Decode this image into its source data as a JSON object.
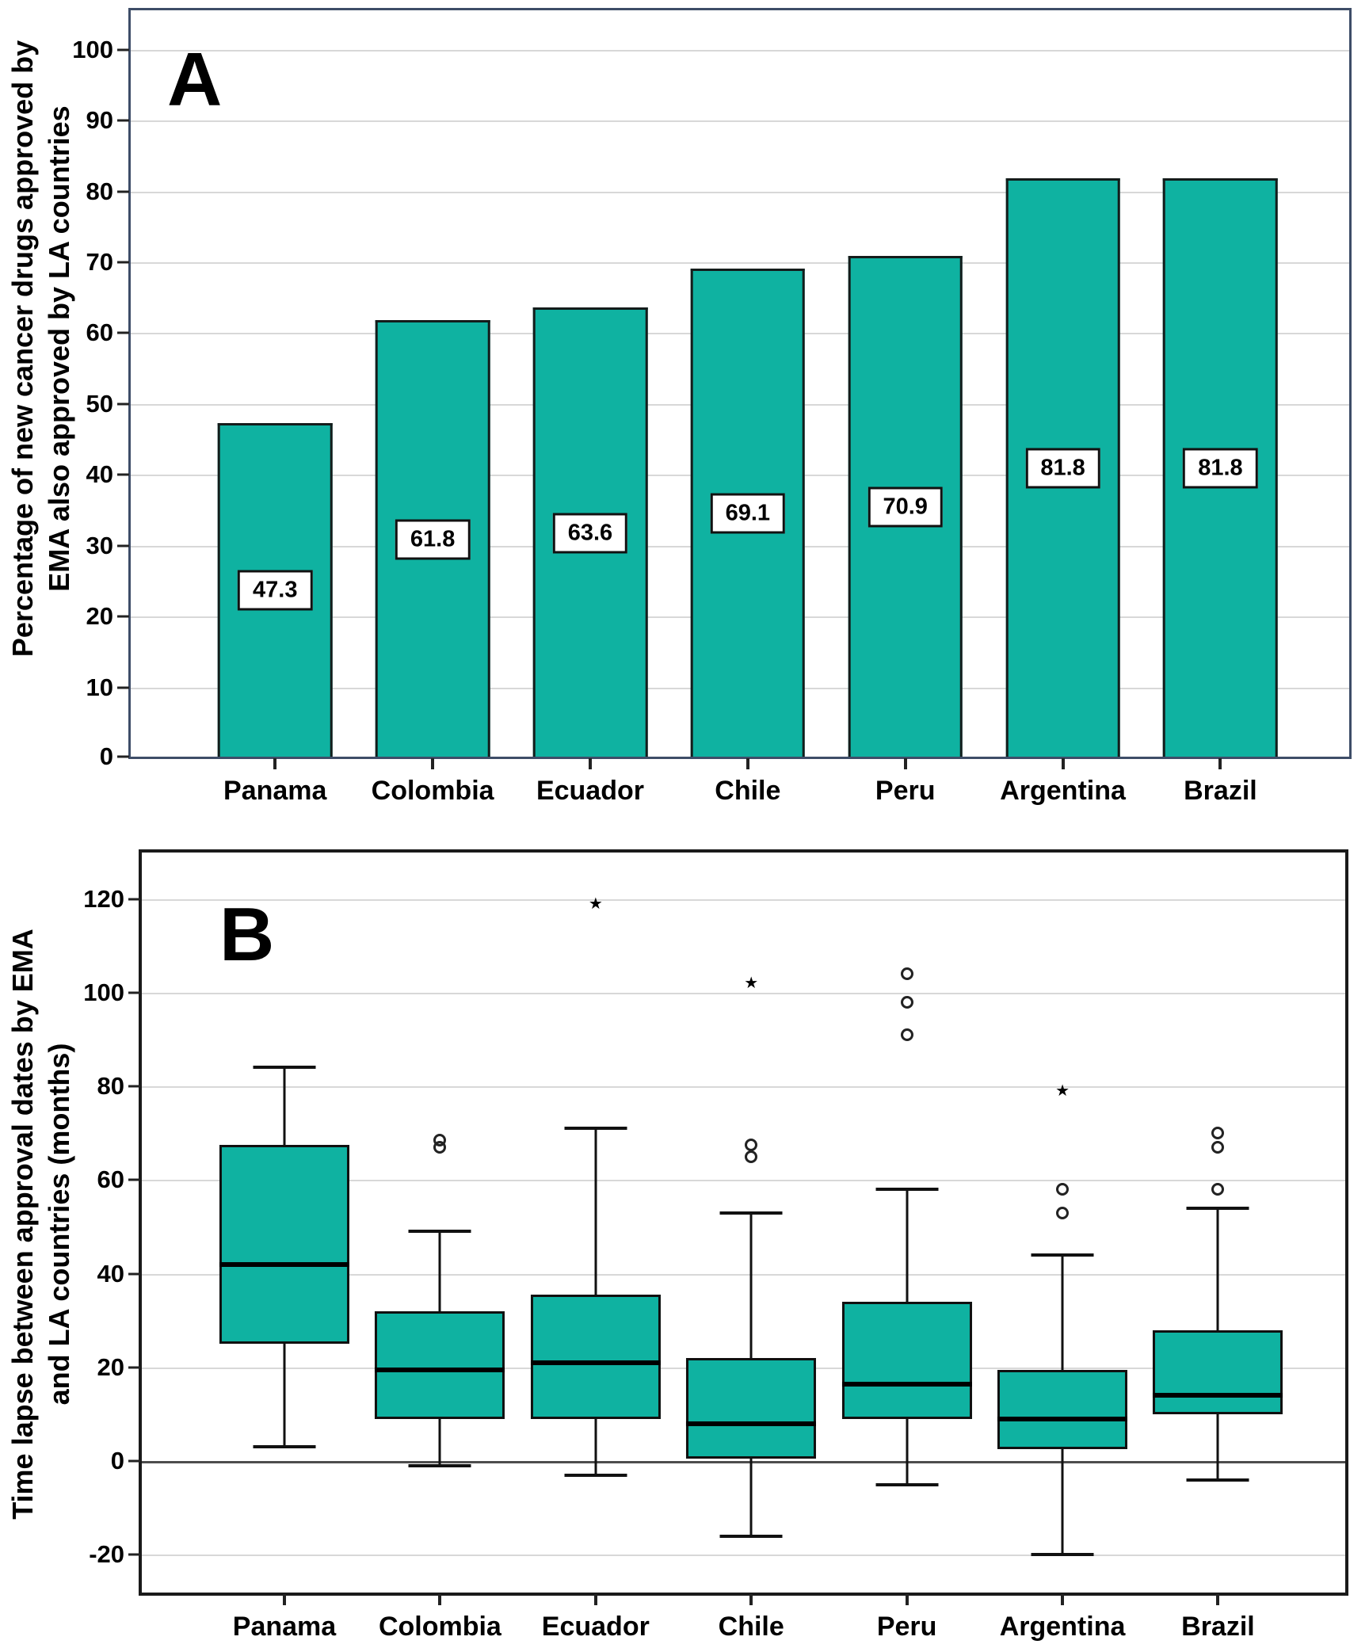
{
  "chart_data": [
    {
      "panel": "A",
      "type": "bar",
      "ylabel_lines": [
        "Percentage of new cancer drugs approved by",
        "EMA also approved by LA countries"
      ],
      "categories": [
        "Panama",
        "Colombia",
        "Ecuador",
        "Chile",
        "Peru",
        "Argentina",
        "Brazil"
      ],
      "values": [
        47.3,
        61.8,
        63.6,
        69.1,
        70.9,
        81.8,
        81.8
      ],
      "value_labels": [
        "47.3",
        "61.8",
        "63.6",
        "69.1",
        "70.9",
        "81.8",
        "81.8"
      ],
      "ylim": [
        0,
        105
      ],
      "yticks": [
        0,
        10,
        20,
        30,
        40,
        50,
        60,
        70,
        80,
        90,
        100
      ],
      "grid": true,
      "legend": "none",
      "bar_color": "#0fb2a1",
      "bar_border_color": "#141c1b",
      "frame_color": "#3e4d68",
      "value_label_style": "white box with black border centered inside bar"
    },
    {
      "panel": "B",
      "type": "box",
      "ylabel_lines": [
        "Time lapse between approval dates by EMA",
        "and LA countries (months)"
      ],
      "categories": [
        "Panama",
        "Colombia",
        "Ecuador",
        "Chile",
        "Peru",
        "Argentina",
        "Brazil"
      ],
      "series": [
        {
          "name": "Panama",
          "whisker_low": 3,
          "q1": 25,
          "median": 42,
          "q3": 67.5,
          "whisker_high": 84,
          "outliers_circle": [],
          "outliers_star": []
        },
        {
          "name": "Colombia",
          "whisker_low": -1,
          "q1": 9,
          "median": 19.5,
          "q3": 32,
          "whisker_high": 49,
          "outliers_circle": [
            68.5,
            67
          ],
          "outliers_star": []
        },
        {
          "name": "Ecuador",
          "whisker_low": -3,
          "q1": 9,
          "median": 21,
          "q3": 35.5,
          "whisker_high": 71,
          "outliers_circle": [],
          "outliers_star": [
            119
          ]
        },
        {
          "name": "Chile",
          "whisker_low": -16,
          "q1": 0.5,
          "median": 8,
          "q3": 22,
          "whisker_high": 53,
          "outliers_circle": [
            67.5,
            65
          ],
          "outliers_star": [
            102
          ]
        },
        {
          "name": "Peru",
          "whisker_low": -5,
          "q1": 9,
          "median": 16.5,
          "q3": 34,
          "whisker_high": 58,
          "outliers_circle": [
            104,
            98,
            91
          ],
          "outliers_star": []
        },
        {
          "name": "Argentina",
          "whisker_low": -20,
          "q1": 2.5,
          "median": 9,
          "q3": 19.5,
          "whisker_high": 44,
          "outliers_circle": [
            58,
            53
          ],
          "outliers_star": [
            79
          ]
        },
        {
          "name": "Brazil",
          "whisker_low": -4,
          "q1": 10,
          "median": 14,
          "q3": 28,
          "whisker_high": 54,
          "outliers_circle": [
            70,
            67,
            58
          ],
          "outliers_star": []
        }
      ],
      "ylim": [
        -30,
        130
      ],
      "yticks": [
        -20,
        0,
        20,
        40,
        60,
        80,
        100,
        120
      ],
      "zero_line": true,
      "grid": true,
      "legend": "none",
      "box_color": "#0fb2a1",
      "box_border_color": "#101010",
      "frame_color": "#1a1a1a"
    }
  ]
}
